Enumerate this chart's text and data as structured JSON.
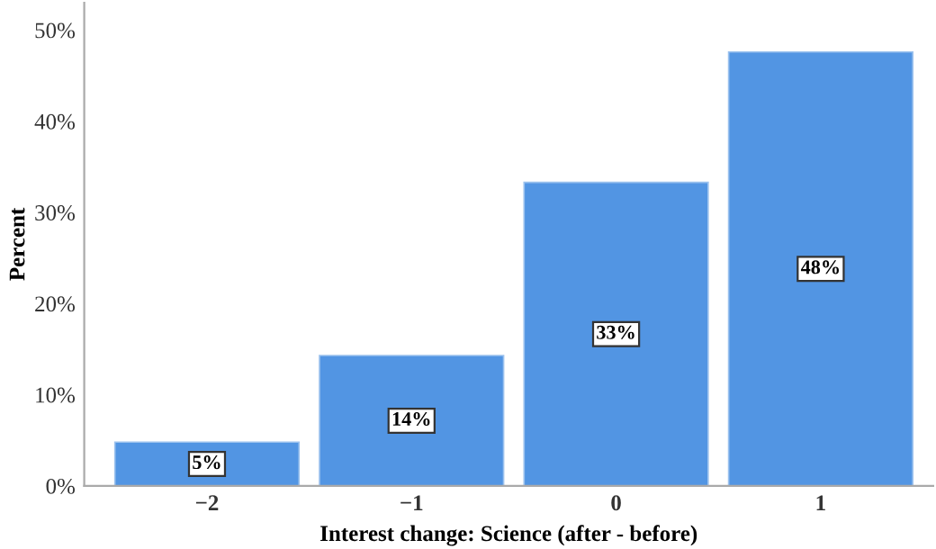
{
  "chart_data": {
    "type": "bar",
    "xlabel": "Interest change: Science (after - before)",
    "ylabel": "Percent",
    "categories": [
      "−2",
      "−1",
      "0",
      "1"
    ],
    "values": [
      4.8,
      14.3,
      33.3,
      47.6
    ],
    "value_labels": [
      "5%",
      "14%",
      "33%",
      "48%"
    ],
    "color": "#5295e3",
    "ylim": [
      0,
      53
    ],
    "yticks": [
      {
        "value": 0,
        "label": "0%"
      },
      {
        "value": 10,
        "label": "10%"
      },
      {
        "value": 20,
        "label": "20%"
      },
      {
        "value": 30,
        "label": "30%"
      },
      {
        "value": 40,
        "label": "40%"
      },
      {
        "value": 50,
        "label": "50%"
      }
    ],
    "grid": false
  }
}
